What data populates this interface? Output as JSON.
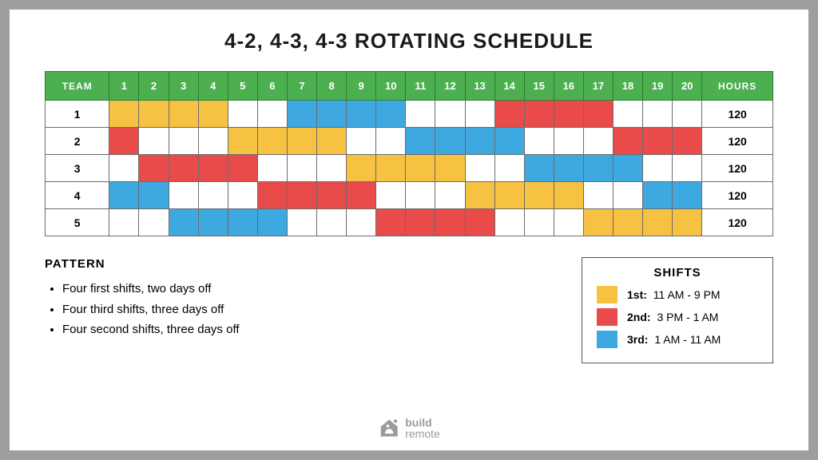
{
  "title": "4-2, 4-3, 4-3 ROTATING SCHEDULE",
  "colors": {
    "header_bg": "#4caf50",
    "header_border": "#2e7d32",
    "cell_border": "#6b6b6b",
    "shift_1": "#f7c241",
    "shift_2": "#e94b4b",
    "shift_3": "#3ea8e0",
    "off": "#ffffff",
    "page_bg": "#ffffff",
    "outer_bg": "#9e9e9e",
    "legend_border": "#555555",
    "logo_color": "#9b9b9b"
  },
  "table": {
    "team_header": "TEAM",
    "hours_header": "HOURS",
    "days": [
      "1",
      "2",
      "3",
      "4",
      "5",
      "6",
      "7",
      "8",
      "9",
      "10",
      "11",
      "12",
      "13",
      "14",
      "15",
      "16",
      "17",
      "18",
      "19",
      "20"
    ],
    "rows": [
      {
        "team": "1",
        "hours": "120",
        "cells": [
          1,
          1,
          1,
          1,
          0,
          0,
          3,
          3,
          3,
          3,
          0,
          0,
          0,
          2,
          2,
          2,
          2,
          0,
          0,
          0
        ]
      },
      {
        "team": "2",
        "hours": "120",
        "cells": [
          2,
          0,
          0,
          0,
          1,
          1,
          1,
          1,
          0,
          0,
          3,
          3,
          3,
          3,
          0,
          0,
          0,
          2,
          2,
          2
        ]
      },
      {
        "team": "3",
        "hours": "120",
        "cells": [
          0,
          2,
          2,
          2,
          2,
          0,
          0,
          0,
          1,
          1,
          1,
          1,
          0,
          0,
          3,
          3,
          3,
          3,
          0,
          0
        ]
      },
      {
        "team": "4",
        "hours": "120",
        "cells": [
          3,
          3,
          0,
          0,
          0,
          2,
          2,
          2,
          2,
          0,
          0,
          0,
          1,
          1,
          1,
          1,
          0,
          0,
          3,
          3
        ]
      },
      {
        "team": "5",
        "hours": "120",
        "cells": [
          0,
          0,
          3,
          3,
          3,
          3,
          0,
          0,
          0,
          2,
          2,
          2,
          2,
          0,
          0,
          0,
          1,
          1,
          1,
          1
        ]
      }
    ]
  },
  "pattern": {
    "heading": "PATTERN",
    "items": [
      "Four first shifts, two days off",
      "Four third shifts, three days off",
      "Four second shifts, three days off"
    ]
  },
  "legend": {
    "title": "SHIFTS",
    "items": [
      {
        "label": "1st:",
        "time": "11 AM - 9 PM",
        "color": "#f7c241"
      },
      {
        "label": "2nd:",
        "time": "3 PM - 1 AM",
        "color": "#e94b4b"
      },
      {
        "label": "3rd:",
        "time": "1 AM - 11 AM",
        "color": "#3ea8e0"
      }
    ]
  },
  "logo": {
    "line1": "build",
    "line2": "remote"
  }
}
